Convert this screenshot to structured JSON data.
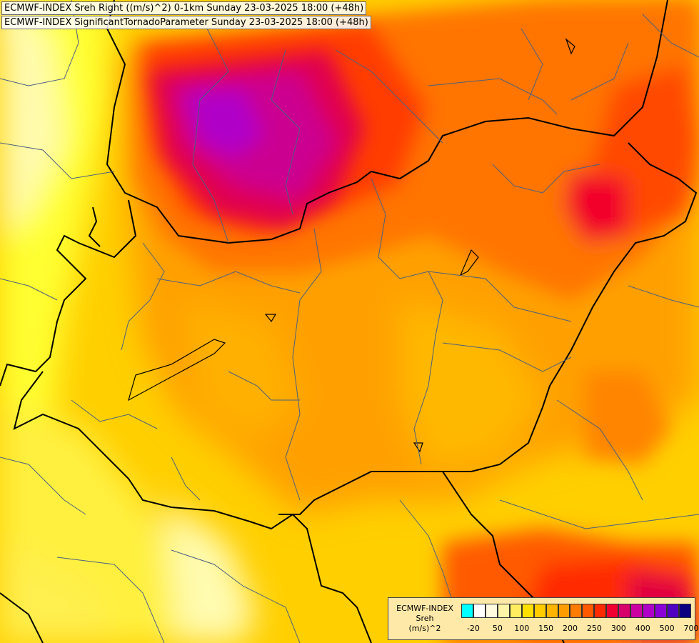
{
  "titles": {
    "line1": "ECMWF-INDEX Sreh Right ((m/s)^2) 0-1km Sunday 23-03-2025 18:00 (+48h)",
    "line2": "ECMWF-INDEX SignificantTornadoParameter Sunday 23-03-2025 18:00 (+48h)"
  },
  "legend": {
    "source": "ECMWF-INDEX",
    "variable": "Sreh",
    "unit": "(m/s)^2",
    "colors": [
      "#00ffff",
      "#ffffff",
      "#fffbe0",
      "#fff5a8",
      "#ffee60",
      "#ffe000",
      "#ffcc00",
      "#ffb400",
      "#ff9c00",
      "#ff7c00",
      "#ff5a00",
      "#ff2a00",
      "#f00030",
      "#d8006a",
      "#cc00a0",
      "#b000c8",
      "#8c00d8",
      "#5000c0",
      "#0a0080"
    ],
    "ticks": [
      "-20",
      "50",
      "100",
      "150",
      "200",
      "250",
      "300",
      "400",
      "500",
      "700"
    ]
  }
}
